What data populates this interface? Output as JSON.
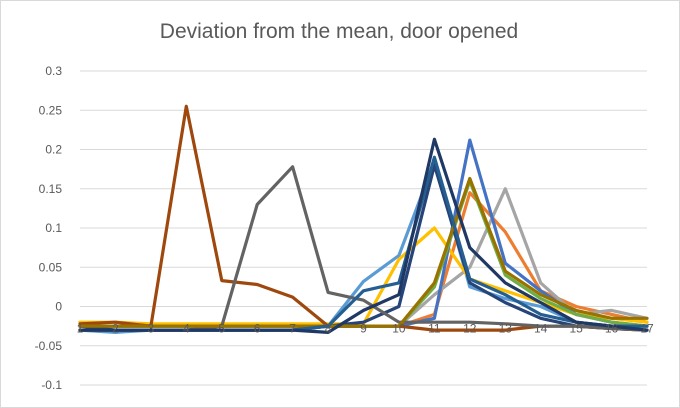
{
  "chart_data": {
    "type": "line",
    "title": "Deviation from the mean, door opened",
    "xlabel": "",
    "ylabel": "",
    "x": [
      1,
      2,
      3,
      4,
      5,
      6,
      7,
      8,
      9,
      10,
      11,
      12,
      13,
      14,
      15,
      16,
      17
    ],
    "ylim": [
      -0.1,
      0.3
    ],
    "yticks": [
      -0.1,
      -0.05,
      0,
      0.05,
      0.1,
      0.15,
      0.2,
      0.25,
      0.3
    ],
    "ytick_labels": [
      "-0.1",
      "-0.05",
      "0",
      "0.05",
      "0.1",
      "0.15",
      "0.2",
      "0.25",
      "0.3"
    ],
    "xtick_labels": [
      "1",
      "2",
      "3",
      "4",
      "5",
      "6",
      "7",
      "8",
      "9",
      "10",
      "11",
      "12",
      "13",
      "14",
      "15",
      "16",
      "17"
    ],
    "grid": true,
    "legend": "none",
    "series": [
      {
        "color": "#5b9bd5",
        "values": [
          -0.03,
          -0.033,
          -0.03,
          -0.03,
          -0.03,
          -0.03,
          -0.03,
          -0.025,
          0.032,
          0.065,
          0.185,
          0.025,
          0.01,
          0.0,
          -0.02,
          -0.025,
          -0.025
        ]
      },
      {
        "color": "#ed7d31",
        "values": [
          -0.025,
          -0.025,
          -0.025,
          -0.025,
          -0.025,
          -0.025,
          -0.025,
          -0.025,
          -0.025,
          -0.025,
          -0.01,
          0.145,
          0.095,
          0.02,
          0.0,
          -0.01,
          -0.02
        ]
      },
      {
        "color": "#a5a5a5",
        "values": [
          -0.025,
          -0.025,
          -0.025,
          -0.025,
          -0.025,
          -0.025,
          -0.025,
          -0.025,
          -0.025,
          -0.025,
          0.015,
          0.05,
          0.15,
          0.03,
          -0.01,
          -0.005,
          -0.015
        ]
      },
      {
        "color": "#ffc000",
        "values": [
          -0.02,
          -0.02,
          -0.022,
          -0.022,
          -0.022,
          -0.022,
          -0.022,
          -0.022,
          -0.022,
          0.06,
          0.1,
          0.035,
          0.02,
          0.005,
          -0.01,
          -0.015,
          -0.02
        ]
      },
      {
        "color": "#4472c4",
        "values": [
          -0.025,
          -0.025,
          -0.025,
          -0.025,
          -0.025,
          -0.025,
          -0.025,
          -0.025,
          -0.025,
          -0.025,
          -0.015,
          0.212,
          0.055,
          0.02,
          -0.01,
          -0.02,
          -0.025
        ]
      },
      {
        "color": "#70ad47",
        "values": [
          -0.025,
          -0.025,
          -0.025,
          -0.025,
          -0.025,
          -0.025,
          -0.025,
          -0.025,
          -0.025,
          -0.025,
          0.025,
          0.16,
          0.04,
          0.01,
          -0.01,
          -0.02,
          -0.025
        ]
      },
      {
        "color": "#264478",
        "values": [
          -0.025,
          -0.03,
          -0.03,
          -0.03,
          -0.03,
          -0.03,
          -0.03,
          -0.025,
          -0.02,
          0.0,
          0.18,
          0.03,
          0.005,
          -0.015,
          -0.025,
          -0.028,
          -0.03
        ]
      },
      {
        "color": "#9e480e",
        "values": [
          -0.022,
          -0.02,
          -0.025,
          0.255,
          0.033,
          0.028,
          0.012,
          -0.025,
          -0.025,
          -0.025,
          -0.03,
          -0.03,
          -0.03,
          -0.025,
          -0.025,
          -0.028,
          -0.03
        ]
      },
      {
        "color": "#636363",
        "values": [
          -0.03,
          -0.03,
          -0.03,
          -0.03,
          -0.025,
          0.13,
          0.178,
          0.018,
          0.008,
          -0.02,
          -0.02,
          -0.02,
          -0.022,
          -0.025,
          -0.025,
          -0.028,
          -0.03
        ]
      },
      {
        "color": "#997300",
        "values": [
          -0.025,
          -0.025,
          -0.025,
          -0.025,
          -0.025,
          -0.025,
          -0.025,
          -0.025,
          -0.025,
          -0.025,
          0.03,
          0.163,
          0.045,
          0.015,
          -0.005,
          -0.015,
          -0.015
        ]
      },
      {
        "color": "#255e91",
        "values": [
          -0.03,
          -0.03,
          -0.03,
          -0.03,
          -0.03,
          -0.03,
          -0.03,
          -0.025,
          0.02,
          0.03,
          0.19,
          0.035,
          0.015,
          -0.01,
          -0.02,
          -0.025,
          -0.025
        ]
      },
      {
        "color": "#1f3864",
        "values": [
          -0.03,
          -0.03,
          -0.03,
          -0.03,
          -0.03,
          -0.03,
          -0.03,
          -0.033,
          -0.005,
          0.015,
          0.213,
          0.075,
          0.03,
          0.005,
          -0.02,
          -0.025,
          -0.03
        ]
      }
    ]
  }
}
